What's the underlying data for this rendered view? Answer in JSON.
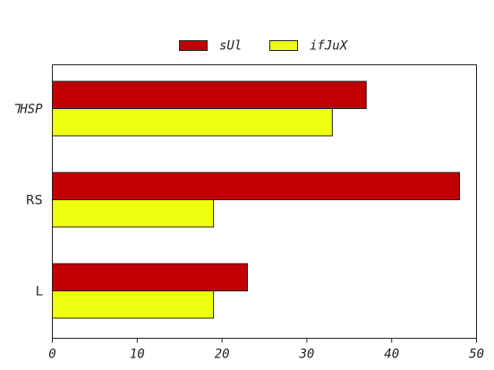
{
  "chart_data": {
    "type": "bar",
    "orientation": "horizontal",
    "categories": [
      "⅂HSP",
      "RS",
      "L"
    ],
    "series": [
      {
        "name": "sUl",
        "values": [
          37,
          48,
          23
        ],
        "color": "#c00000"
      },
      {
        "name": "ifJuX",
        "values": [
          33,
          19,
          19
        ],
        "color": "#eeff11"
      }
    ],
    "xlim": [
      0,
      50
    ],
    "xticks": [
      0,
      10,
      20,
      30,
      40,
      50
    ],
    "grid": false,
    "legend_position": "top-center"
  }
}
